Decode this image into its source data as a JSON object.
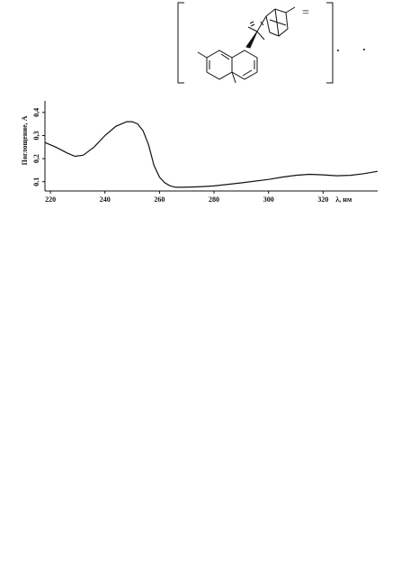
{
  "structure": {
    "double_bond_label": "="
  },
  "chart_data": {
    "type": "line",
    "title": "",
    "xlabel": "λ, нм",
    "ylabel": "Поглощение, А",
    "x_ticks": [
      220,
      240,
      260,
      280,
      300,
      320
    ],
    "y_ticks": [
      0.1,
      0.2,
      0.3,
      0.4
    ],
    "y_tick_labels": [
      "0.1",
      "0,2",
      "0,3",
      "0,4"
    ],
    "xlim": [
      218,
      340
    ],
    "ylim": [
      0.06,
      0.45
    ],
    "grid": false,
    "series": [
      {
        "x": [
          218,
          222,
          226,
          229,
          232,
          236,
          240,
          244,
          248,
          250,
          252,
          254,
          256,
          258,
          260,
          262,
          264,
          266,
          268,
          272,
          276,
          280,
          290,
          300,
          305,
          310,
          315,
          320,
          325,
          330,
          335,
          340
        ],
        "y": [
          0.27,
          0.25,
          0.225,
          0.21,
          0.215,
          0.25,
          0.3,
          0.34,
          0.36,
          0.36,
          0.35,
          0.32,
          0.26,
          0.17,
          0.12,
          0.095,
          0.082,
          0.076,
          0.076,
          0.077,
          0.079,
          0.082,
          0.095,
          0.11,
          0.12,
          0.128,
          0.132,
          0.13,
          0.126,
          0.128,
          0.135,
          0.145
        ]
      }
    ]
  }
}
